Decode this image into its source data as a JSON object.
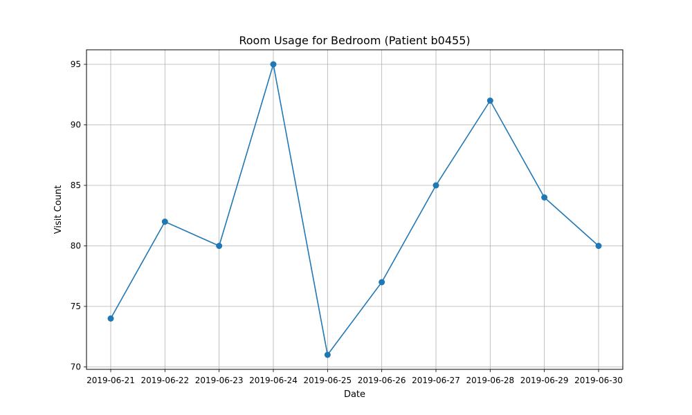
{
  "chart_data": {
    "type": "line",
    "title": "Room Usage for Bedroom (Patient b0455)",
    "xlabel": "Date",
    "ylabel": "Visit Count",
    "x": [
      "2019-06-21",
      "2019-06-22",
      "2019-06-23",
      "2019-06-24",
      "2019-06-25",
      "2019-06-26",
      "2019-06-27",
      "2019-06-28",
      "2019-06-29",
      "2019-06-30"
    ],
    "series": [
      {
        "values": [
          74,
          82,
          80,
          95,
          71,
          77,
          85,
          92,
          84,
          80
        ],
        "color": "#1f77b4",
        "marker": "circle"
      }
    ],
    "ylim": [
      69.8,
      96.2
    ],
    "yticks": [
      70,
      75,
      80,
      85,
      90,
      95
    ],
    "grid": true,
    "legend": "none"
  }
}
